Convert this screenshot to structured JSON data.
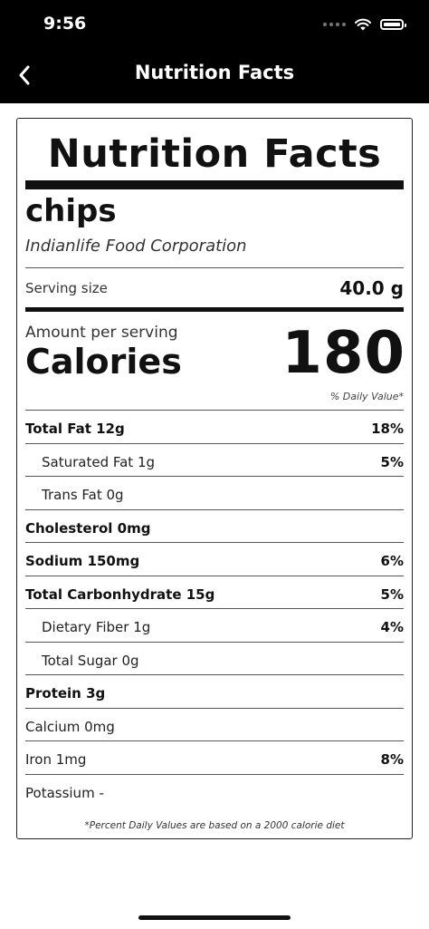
{
  "status_bar": {
    "time": "9:56"
  },
  "nav": {
    "title": "Nutrition Facts"
  },
  "label": {
    "title": "Nutrition Facts",
    "product_name": "chips",
    "brand": "Indianlife Food Corporation",
    "serving_size_label": "Serving size",
    "serving_size_value": "40.0 g",
    "amount_per_serving": "Amount per serving",
    "calories_label": "Calories",
    "calories_value": "180",
    "daily_value_header": "% Daily Value*",
    "rows": [
      {
        "label": "Total Fat 12g",
        "value": "18%"
      },
      {
        "label": "Saturated Fat 1g",
        "value": "5%"
      },
      {
        "label": "Trans Fat 0g",
        "value": ""
      },
      {
        "label": "Cholesterol 0mg",
        "value": ""
      },
      {
        "label": "Sodium 150mg",
        "value": "6%"
      },
      {
        "label": "Total Carbonhydrate 15g",
        "value": "5%"
      },
      {
        "label": "Dietary Fiber 1g",
        "value": "4%"
      },
      {
        "label": "Total Sugar 0g",
        "value": ""
      },
      {
        "label": "Protein 3g",
        "value": ""
      },
      {
        "label": "Calcium 0mg",
        "value": ""
      },
      {
        "label": "Iron 1mg",
        "value": "8%"
      },
      {
        "label": "Potassium -",
        "value": ""
      }
    ],
    "footnote": "*Percent Daily Values are based on a 2000 calorie diet"
  }
}
